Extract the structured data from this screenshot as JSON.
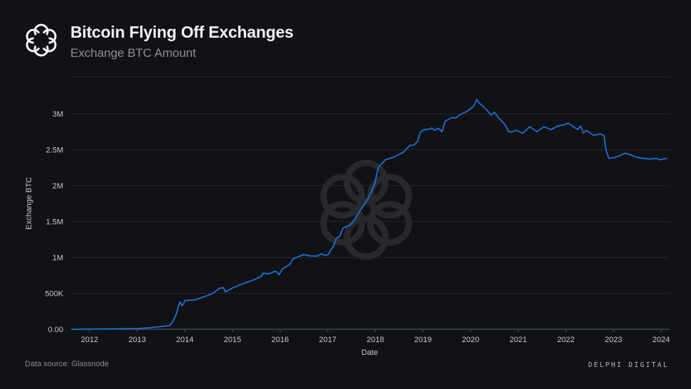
{
  "header": {
    "title": "Bitcoin Flying Off Exchanges",
    "subtitle": "Exchange BTC Amount",
    "logo_icon": "delphi-knot-icon"
  },
  "footer": {
    "source": "Data source: Glassnode",
    "brand": "DELPHI DIGITAL"
  },
  "colors": {
    "background": "#111215",
    "line": "#1f6fd6",
    "grid": "#26282c",
    "axis": "#4a5568"
  },
  "chart_data": {
    "type": "line",
    "title": "Bitcoin Flying Off Exchanges",
    "subtitle": "Exchange BTC Amount",
    "xlabel": "Date",
    "ylabel": "Exchange BTC",
    "xlim": [
      2011.62,
      2024.24
    ],
    "ylim": [
      0,
      3400000
    ],
    "x_ticks": [
      2012,
      2013,
      2014,
      2015,
      2016,
      2017,
      2018,
      2019,
      2020,
      2021,
      2022,
      2023,
      2024
    ],
    "x_tick_labels": [
      "2012",
      "2013",
      "2014",
      "2015",
      "2016",
      "2017",
      "2018",
      "2019",
      "2020",
      "2021",
      "2022",
      "2023",
      "2024"
    ],
    "y_ticks": [
      0,
      500000,
      1000000,
      1500000,
      2000000,
      2500000,
      3000000
    ],
    "y_tick_labels": [
      "0.00",
      "500K",
      "1M",
      "1.5M",
      "2M",
      "2.5M",
      "3M"
    ],
    "grid": true,
    "legend": "none",
    "series": [
      {
        "name": "Exchange BTC",
        "x": [
          2011.62,
          2013.0,
          2013.24,
          2013.68,
          2013.75,
          2013.83,
          2013.87,
          2013.9,
          2013.94,
          2013.97,
          2014.0,
          2014.22,
          2014.44,
          2014.59,
          2014.73,
          2014.81,
          2014.85,
          2014.9,
          2015.02,
          2015.24,
          2015.46,
          2015.61,
          2015.64,
          2015.76,
          2015.9,
          2015.95,
          2015.98,
          2016.05,
          2016.2,
          2016.27,
          2016.35,
          2016.42,
          2016.5,
          2016.64,
          2016.79,
          2016.86,
          2016.94,
          2017.01,
          2017.13,
          2017.18,
          2017.25,
          2017.32,
          2017.4,
          2017.47,
          2017.55,
          2017.62,
          2017.69,
          2017.84,
          2017.99,
          2018.06,
          2018.14,
          2018.21,
          2018.36,
          2018.43,
          2018.51,
          2018.58,
          2018.65,
          2018.73,
          2018.8,
          2018.88,
          2018.95,
          2019.03,
          2019.1,
          2019.18,
          2019.25,
          2019.32,
          2019.4,
          2019.47,
          2019.62,
          2019.69,
          2019.76,
          2019.91,
          2020.06,
          2020.13,
          2020.18,
          2020.28,
          2020.36,
          2020.43,
          2020.5,
          2020.58,
          2020.72,
          2020.8,
          2020.87,
          2020.95,
          2021.1,
          2021.24,
          2021.39,
          2021.54,
          2021.69,
          2021.83,
          2021.98,
          2022.05,
          2022.16,
          2022.25,
          2022.31,
          2022.37,
          2022.43,
          2022.58,
          2022.72,
          2022.8,
          2022.84,
          2022.9,
          2023.02,
          2023.14,
          2023.24,
          2023.31,
          2023.46,
          2023.61,
          2023.76,
          2023.9,
          2023.98,
          2024.05,
          2024.12
        ],
        "values": [
          0,
          10000,
          20000,
          50000,
          110000,
          230000,
          330000,
          380000,
          330000,
          350000,
          400000,
          410000,
          460000,
          500000,
          570000,
          580000,
          520000,
          540000,
          580000,
          640000,
          690000,
          740000,
          780000,
          770000,
          810000,
          780000,
          760000,
          840000,
          900000,
          980000,
          1000000,
          1020000,
          1040000,
          1020000,
          1020000,
          1050000,
          1030000,
          1040000,
          1170000,
          1270000,
          1290000,
          1410000,
          1430000,
          1450000,
          1510000,
          1590000,
          1660000,
          1810000,
          2030000,
          2250000,
          2310000,
          2360000,
          2390000,
          2410000,
          2440000,
          2460000,
          2510000,
          2560000,
          2560000,
          2610000,
          2750000,
          2780000,
          2780000,
          2800000,
          2770000,
          2800000,
          2750000,
          2900000,
          2950000,
          2940000,
          2980000,
          3030000,
          3100000,
          3200000,
          3150000,
          3090000,
          3040000,
          2980000,
          3020000,
          2950000,
          2850000,
          2750000,
          2750000,
          2770000,
          2730000,
          2820000,
          2750000,
          2820000,
          2780000,
          2830000,
          2850000,
          2870000,
          2820000,
          2780000,
          2830000,
          2730000,
          2770000,
          2700000,
          2720000,
          2700000,
          2500000,
          2380000,
          2390000,
          2420000,
          2450000,
          2440000,
          2400000,
          2380000,
          2370000,
          2380000,
          2360000,
          2370000,
          2380000
        ]
      }
    ]
  }
}
